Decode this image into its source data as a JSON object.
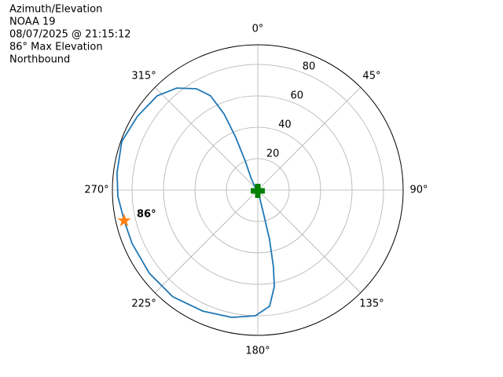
{
  "chart_data": {
    "type": "polar",
    "title_lines": [
      "Azimuth/Elevation",
      "NOAA 19",
      "08/07/2025 @ 21:15:12",
      "86° Max Elevation",
      "Northbound"
    ],
    "rlim": [
      0,
      92.5
    ],
    "rticks": [
      20,
      40,
      60,
      80
    ],
    "thetaticks": [
      {
        "value": 0,
        "label": "0°"
      },
      {
        "value": 45,
        "label": "45°"
      },
      {
        "value": 90,
        "label": "90°"
      },
      {
        "value": 135,
        "label": "135°"
      },
      {
        "value": 180,
        "label": "180°"
      },
      {
        "value": 225,
        "label": "225°"
      },
      {
        "value": 270,
        "label": "270°"
      },
      {
        "value": 315,
        "label": "315°"
      }
    ],
    "grid": true,
    "series": [
      {
        "color": "#1f77b4",
        "theta": [
          257.1,
          267.4,
          277,
          289.7,
          301.6,
          313.2,
          321.6,
          328.8,
          333.4,
          336.1,
          337.3,
          336.6,
          330,
          166,
          166.4,
          166.6,
          168.5,
          170.3,
          174.2,
          181.1,
          191.5,
          204.4,
          218.5,
          232.5,
          247,
          257.1
        ],
        "r": [
          87.2,
          89.1,
          90.2,
          91.9,
          89.8,
          87.7,
          82.9,
          75.4,
          67.1,
          53,
          36.3,
          20.2,
          8.1,
          4.1,
          17,
          32.4,
          50,
          62.4,
          74.4,
          80,
          82.7,
          84.6,
          86.8,
          87,
          86.9,
          87.2
        ]
      }
    ],
    "markers": [
      {
        "theta": 257.1,
        "r": 87.2,
        "color": "#ff7f0e",
        "shape": "star"
      },
      {
        "theta": 180,
        "r": 0.5,
        "color": "#008000",
        "shape": "plus"
      }
    ],
    "annotation": {
      "text": "86°"
    }
  }
}
